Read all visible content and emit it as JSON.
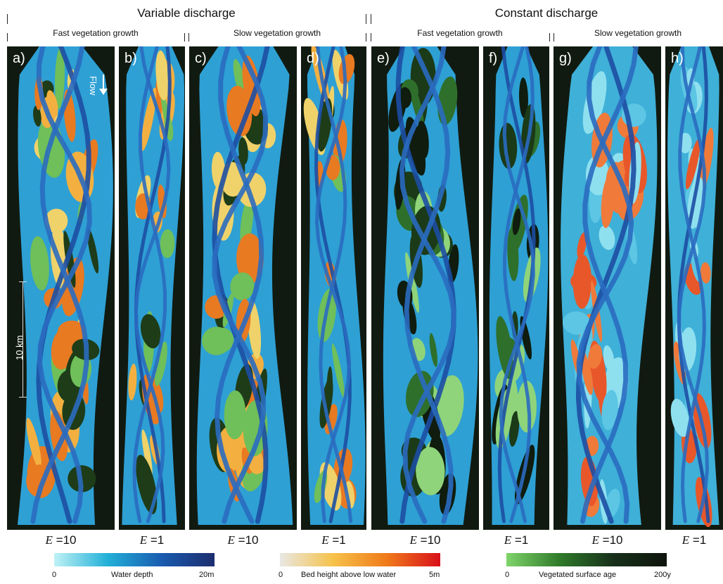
{
  "headers": {
    "variable": "Variable discharge",
    "constant": "Constant discharge",
    "fast": "Fast vegetation growth",
    "slow": "Slow vegetation growth"
  },
  "panels": [
    {
      "label": "a)",
      "e": "=10"
    },
    {
      "label": "b)",
      "e": "=1"
    },
    {
      "label": "c)",
      "e": "=10"
    },
    {
      "label": "d)",
      "e": "=1"
    },
    {
      "label": "e)",
      "e": "=10"
    },
    {
      "label": "f)",
      "e": "=1"
    },
    {
      "label": "g)",
      "e": "=10"
    },
    {
      "label": "h)",
      "e": "=1"
    }
  ],
  "e_symbol": "E",
  "flow_label": "Flow",
  "scale_label": "10 km",
  "colorbars": [
    {
      "min": "0",
      "name": "Water depth",
      "max": "20m",
      "colors": [
        "#bff2f5",
        "#22b0d8",
        "#1a5cb0",
        "#1d2d6e"
      ]
    },
    {
      "min": "0",
      "name": "Bed height above low water",
      "max": "5m",
      "colors": [
        "#e8e8e4",
        "#f6c24a",
        "#f07a1a",
        "#d8101a"
      ]
    },
    {
      "min": "0",
      "name": "Vegetated surface age",
      "max": "200y",
      "colors": [
        "#7fd46a",
        "#2f7a2a",
        "#17301a",
        "#0e140c"
      ]
    }
  ]
}
